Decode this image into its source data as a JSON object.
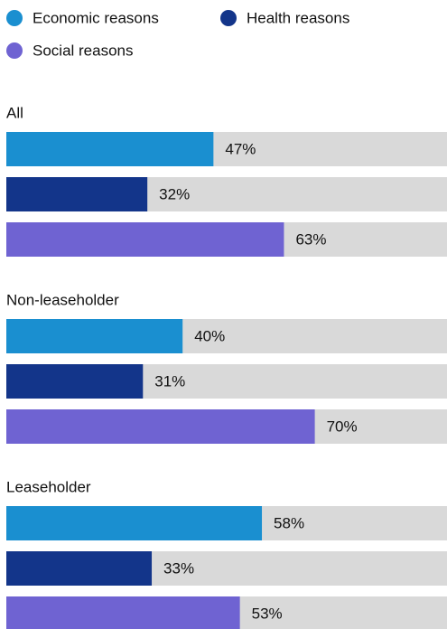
{
  "chart_data": {
    "type": "bar",
    "orientation": "horizontal",
    "categories": [
      "All",
      "Non-leaseholder",
      "Leaseholder"
    ],
    "series": [
      {
        "name": "Economic reasons",
        "color": "#1a8fd0",
        "values": [
          47,
          40,
          58
        ],
        "value_labels": [
          "47%",
          "40%",
          "58%"
        ]
      },
      {
        "name": "Health reasons",
        "color": "#13358a",
        "values": [
          32,
          31,
          33
        ],
        "value_labels": [
          "32%",
          "31%",
          "33%"
        ]
      },
      {
        "name": "Social reasons",
        "color": "#6f63d2",
        "values": [
          63,
          70,
          53
        ],
        "value_labels": [
          "63%",
          "70%",
          "53%"
        ]
      }
    ],
    "xlim": [
      0,
      100
    ],
    "track_color": "#d9d9d9"
  }
}
